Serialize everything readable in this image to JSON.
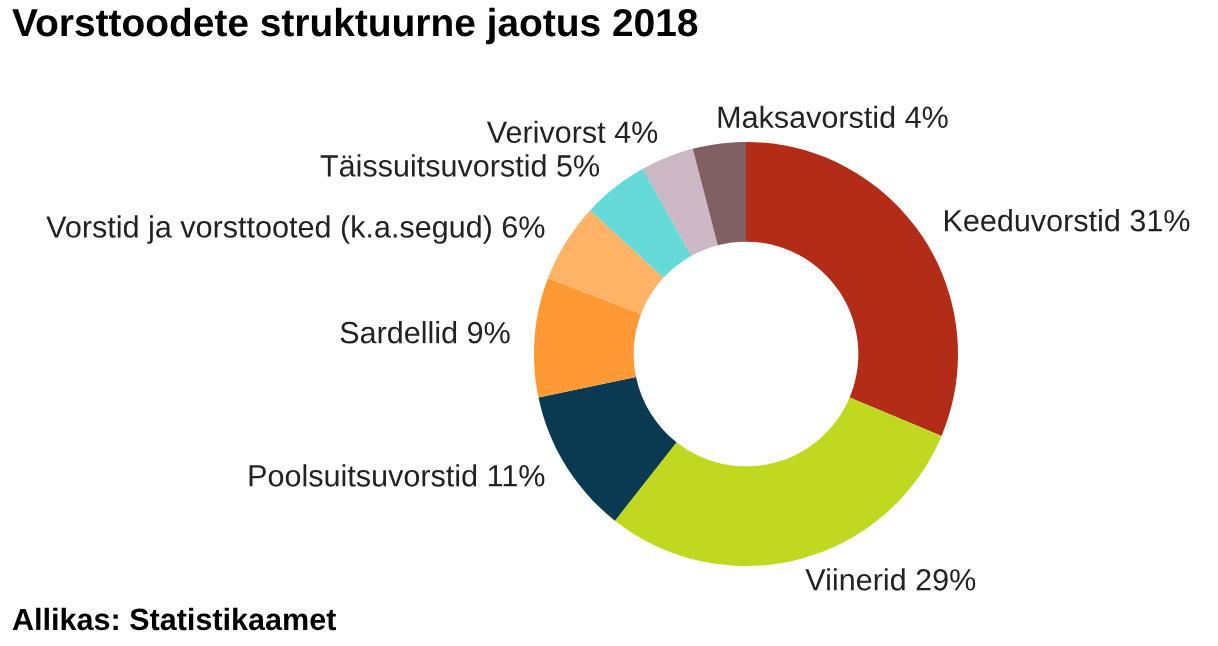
{
  "chart_data": {
    "type": "donut",
    "title": "Vorsttoodete struktuurne jaotus 2018",
    "categories": [
      "Keeduvorstid",
      "Viinerid",
      "Poolsuitsuvorstid",
      "Sardellid",
      "Vorstid ja vorsttooted (k.a.segud)",
      "Täissuitsuvorstid",
      "Verivorst",
      "Maksavorstid"
    ],
    "values": [
      31,
      29,
      11,
      9,
      6,
      5,
      4,
      4
    ],
    "value_labels": [
      "31%",
      "29%",
      "11%",
      "9%",
      "6%",
      "5%",
      "4%",
      "4%"
    ],
    "colors": [
      "#b22c17",
      "#c0d920",
      "#0a3a52",
      "#ff9933",
      "#ffb366",
      "#66d9d9",
      "#ccb8c4",
      "#806060"
    ],
    "annotations": [
      "Allikas: Statistikaamet"
    ],
    "legend": false
  }
}
